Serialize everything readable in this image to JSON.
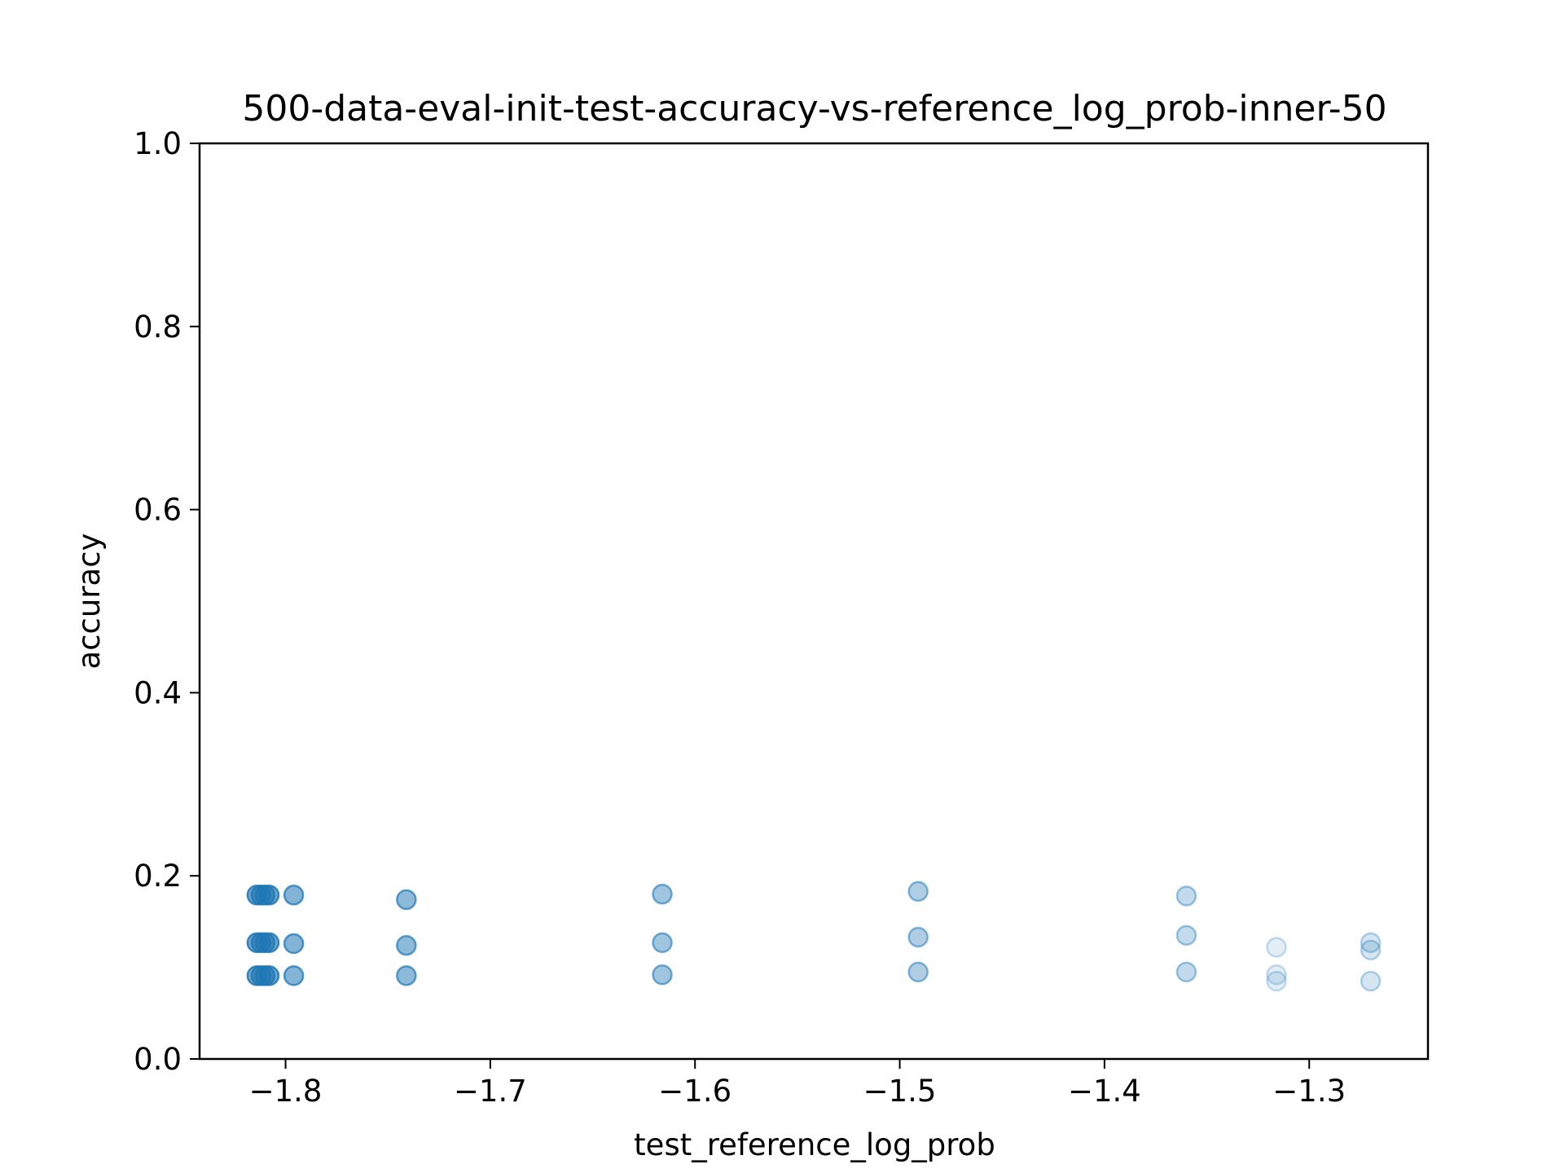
{
  "chart_data": {
    "type": "scatter",
    "title": "500-data-eval-init-test-accuracy-vs-reference_log_prob-inner-50",
    "xlabel": "test_reference_log_prob",
    "ylabel": "accuracy",
    "xlim": [
      -1.842,
      -1.242
    ],
    "ylim": [
      0.0,
      1.0
    ],
    "xticks": [
      -1.8,
      -1.7,
      -1.6,
      -1.5,
      -1.4,
      -1.3
    ],
    "xtick_labels": [
      "−1.8",
      "−1.7",
      "−1.6",
      "−1.5",
      "−1.4",
      "−1.3"
    ],
    "yticks": [
      0.0,
      0.2,
      0.4,
      0.6,
      0.8,
      1.0
    ],
    "ytick_labels": [
      "0.0",
      "0.2",
      "0.4",
      "0.6",
      "0.8",
      "1.0"
    ],
    "grid": false,
    "marker_color": "#1f77b4",
    "points": [
      {
        "x": -1.814,
        "y": 0.179,
        "alpha": 0.75
      },
      {
        "x": -1.812,
        "y": 0.179,
        "alpha": 0.75
      },
      {
        "x": -1.81,
        "y": 0.179,
        "alpha": 0.75
      },
      {
        "x": -1.808,
        "y": 0.179,
        "alpha": 0.75
      },
      {
        "x": -1.814,
        "y": 0.127,
        "alpha": 0.75
      },
      {
        "x": -1.812,
        "y": 0.127,
        "alpha": 0.75
      },
      {
        "x": -1.81,
        "y": 0.127,
        "alpha": 0.75
      },
      {
        "x": -1.808,
        "y": 0.127,
        "alpha": 0.75
      },
      {
        "x": -1.814,
        "y": 0.091,
        "alpha": 0.75
      },
      {
        "x": -1.812,
        "y": 0.091,
        "alpha": 0.75
      },
      {
        "x": -1.81,
        "y": 0.091,
        "alpha": 0.75
      },
      {
        "x": -1.808,
        "y": 0.091,
        "alpha": 0.75
      },
      {
        "x": -1.796,
        "y": 0.179,
        "alpha": 0.65
      },
      {
        "x": -1.796,
        "y": 0.126,
        "alpha": 0.65
      },
      {
        "x": -1.796,
        "y": 0.091,
        "alpha": 0.65
      },
      {
        "x": -1.741,
        "y": 0.174,
        "alpha": 0.6
      },
      {
        "x": -1.741,
        "y": 0.124,
        "alpha": 0.6
      },
      {
        "x": -1.741,
        "y": 0.091,
        "alpha": 0.6
      },
      {
        "x": -1.616,
        "y": 0.18,
        "alpha": 0.5
      },
      {
        "x": -1.616,
        "y": 0.127,
        "alpha": 0.5
      },
      {
        "x": -1.616,
        "y": 0.092,
        "alpha": 0.5
      },
      {
        "x": -1.491,
        "y": 0.183,
        "alpha": 0.42
      },
      {
        "x": -1.491,
        "y": 0.133,
        "alpha": 0.42
      },
      {
        "x": -1.491,
        "y": 0.095,
        "alpha": 0.42
      },
      {
        "x": -1.36,
        "y": 0.178,
        "alpha": 0.32
      },
      {
        "x": -1.36,
        "y": 0.135,
        "alpha": 0.32
      },
      {
        "x": -1.36,
        "y": 0.095,
        "alpha": 0.32
      },
      {
        "x": -1.316,
        "y": 0.122,
        "alpha": 0.15
      },
      {
        "x": -1.316,
        "y": 0.092,
        "alpha": 0.15
      },
      {
        "x": -1.316,
        "y": 0.085,
        "alpha": 0.15
      },
      {
        "x": -1.27,
        "y": 0.127,
        "alpha": 0.22
      },
      {
        "x": -1.27,
        "y": 0.119,
        "alpha": 0.22
      },
      {
        "x": -1.27,
        "y": 0.085,
        "alpha": 0.22
      }
    ]
  }
}
